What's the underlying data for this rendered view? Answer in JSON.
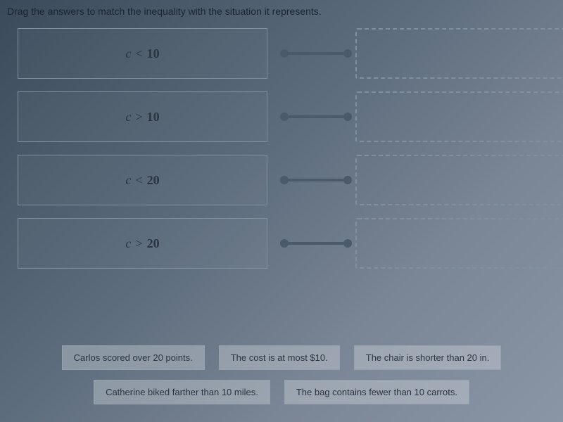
{
  "instruction": "Drag the answers to match the inequality with the situation it represents.",
  "inequalities": [
    {
      "variable": "c",
      "operator": "<",
      "value": "10"
    },
    {
      "variable": "c",
      "operator": ">",
      "value": "10"
    },
    {
      "variable": "c",
      "operator": "<",
      "value": "20"
    },
    {
      "variable": "c",
      "operator": ">",
      "value": "20"
    }
  ],
  "answers_row1": [
    "Carlos scored over 20 points.",
    "The cost is at most $10.",
    "The chair is shorter than 20 in."
  ],
  "answers_row2": [
    "Catherine biked farther than 10 miles.",
    "The bag contains fewer than 10 carrots."
  ],
  "colors": {
    "connector": "#4a5a6a",
    "border": "#8090a0",
    "text": "#2a3540"
  }
}
